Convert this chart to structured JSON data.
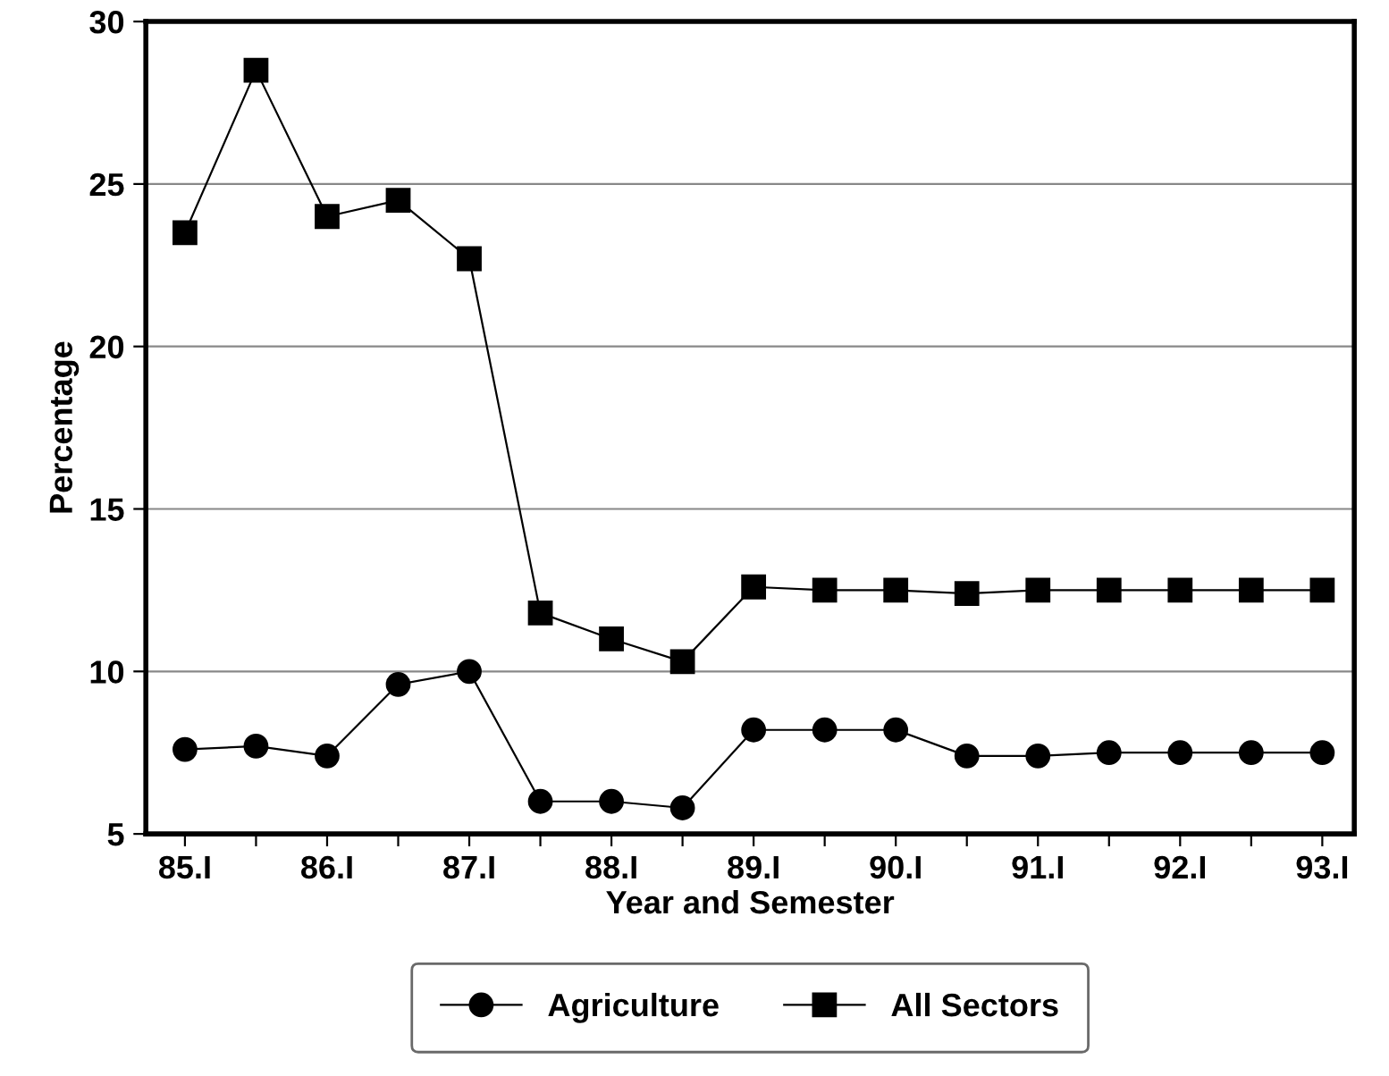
{
  "chart_data": {
    "type": "line",
    "categories": [
      "85.I",
      null,
      "86.I",
      null,
      "87.I",
      null,
      "88.I",
      null,
      "89.I",
      null,
      "90.I",
      null,
      "91.I",
      null,
      "92.I",
      null,
      "93.I"
    ],
    "series": [
      {
        "name": "Agriculture",
        "color": "#000000",
        "marker": "circle",
        "values": [
          7.6,
          7.7,
          7.4,
          9.6,
          10.0,
          6.0,
          6.0,
          5.8,
          8.2,
          8.2,
          8.2,
          7.4,
          7.4,
          7.5,
          7.5,
          7.5,
          7.5
        ]
      },
      {
        "name": "All Sectors",
        "color": "#000000",
        "marker": "square",
        "values": [
          23.5,
          28.5,
          24.0,
          24.5,
          22.7,
          11.8,
          11.0,
          10.3,
          12.6,
          12.5,
          12.5,
          12.4,
          12.5,
          12.5,
          12.5,
          12.5,
          12.5
        ]
      }
    ],
    "xlabel": "Year and Semester",
    "ylabel": "Percentage",
    "ylim": [
      5,
      30
    ],
    "yticks": [
      5,
      10,
      15,
      20,
      25,
      30
    ],
    "grid": "y",
    "legend": "bottom",
    "line_style": "solid"
  }
}
